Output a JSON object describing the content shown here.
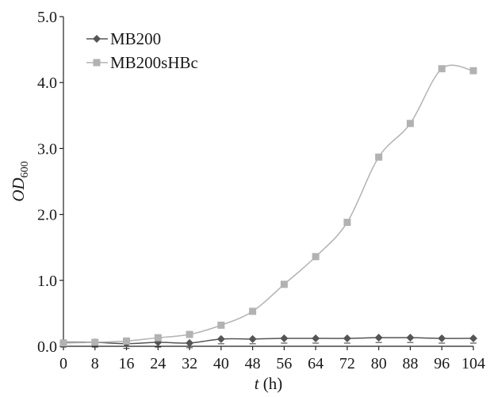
{
  "chart_data": {
    "type": "line",
    "title": "",
    "xlabel": {
      "italic": "t",
      "plain": " (h)"
    },
    "ylabel": {
      "main": "OD",
      "sub": "600"
    },
    "xlim": [
      0,
      104
    ],
    "ylim": [
      0,
      5.0
    ],
    "x_ticks": [
      0,
      8,
      16,
      24,
      32,
      40,
      48,
      56,
      64,
      72,
      80,
      88,
      96,
      104
    ],
    "x_tick_labels": [
      "0",
      "8",
      "16",
      "24",
      "32",
      "40",
      "48",
      "56",
      "64",
      "72",
      "80",
      "88",
      "96",
      "104"
    ],
    "y_ticks": [
      0,
      1,
      2,
      3,
      4,
      5
    ],
    "y_tick_labels": [
      "0.0",
      "1.0",
      "2.0",
      "3.0",
      "4.0",
      "5.0"
    ],
    "grid": false,
    "legend_position": "top-left",
    "x": [
      0,
      8,
      16,
      24,
      32,
      40,
      48,
      56,
      64,
      72,
      80,
      88,
      96,
      104
    ],
    "series": [
      {
        "name": "MB200",
        "marker": "diamond",
        "color": "#555555",
        "values": [
          0.06,
          0.06,
          0.04,
          0.06,
          0.05,
          0.11,
          0.11,
          0.12,
          0.12,
          0.12,
          0.13,
          0.13,
          0.12,
          0.12
        ]
      },
      {
        "name": "MB200sHBc",
        "marker": "square",
        "color": "#b2b2b2",
        "values": [
          0.05,
          0.06,
          0.08,
          0.13,
          0.18,
          0.32,
          0.53,
          0.94,
          1.36,
          1.88,
          2.87,
          3.38,
          4.21,
          4.18
        ]
      }
    ]
  }
}
